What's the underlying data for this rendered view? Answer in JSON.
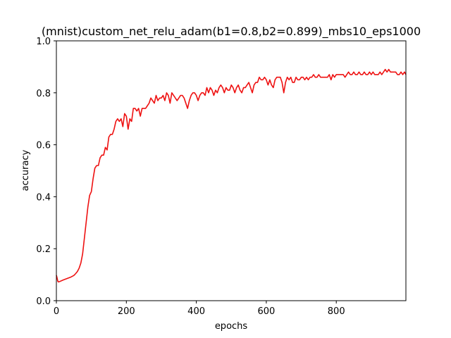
{
  "chart_data": {
    "type": "line",
    "title": "(mnist)custom_net_relu_adam(b1=0.8,b2=0.899)_mbs10_eps1000",
    "xlabel": "epochs",
    "ylabel": "accuracy",
    "xlim": [
      0,
      999
    ],
    "ylim": [
      0.0,
      1.0
    ],
    "x_ticks": [
      0,
      200,
      400,
      600,
      800
    ],
    "x_tick_labels": [
      "0",
      "200",
      "400",
      "600",
      "800"
    ],
    "y_ticks": [
      0.0,
      0.2,
      0.4,
      0.6,
      0.8,
      1.0
    ],
    "y_tick_labels": [
      "0.0",
      "0.2",
      "0.4",
      "0.6",
      "0.8",
      "1.0"
    ],
    "grid": false,
    "colors": {
      "line": "#ee1111",
      "axes": "#000000",
      "background": "#ffffff"
    },
    "series": [
      {
        "x": [
          0,
          2,
          4,
          6,
          10,
          20,
          30,
          40,
          50,
          55,
          60,
          65,
          70,
          75,
          80,
          85,
          90,
          95,
          100,
          105,
          110,
          115,
          120,
          125,
          130,
          135,
          140,
          145,
          150,
          155,
          160,
          165,
          170,
          175,
          180,
          185,
          190,
          195,
          200,
          205,
          210,
          215,
          220,
          225,
          230,
          235,
          240,
          245,
          250,
          255,
          260,
          265,
          270,
          275,
          280,
          285,
          290,
          295,
          300,
          305,
          310,
          315,
          320,
          325,
          330,
          335,
          340,
          345,
          350,
          355,
          360,
          365,
          370,
          375,
          380,
          385,
          390,
          395,
          400,
          405,
          410,
          415,
          420,
          425,
          430,
          435,
          440,
          445,
          450,
          455,
          460,
          465,
          470,
          475,
          480,
          485,
          490,
          495,
          500,
          505,
          510,
          515,
          520,
          525,
          530,
          535,
          540,
          545,
          550,
          555,
          560,
          565,
          570,
          575,
          580,
          585,
          590,
          595,
          600,
          605,
          610,
          615,
          620,
          625,
          630,
          635,
          640,
          645,
          650,
          655,
          660,
          665,
          670,
          675,
          680,
          685,
          690,
          695,
          700,
          705,
          710,
          715,
          720,
          725,
          730,
          735,
          740,
          745,
          750,
          755,
          760,
          765,
          770,
          775,
          780,
          785,
          790,
          795,
          800,
          805,
          810,
          815,
          820,
          825,
          830,
          835,
          840,
          845,
          850,
          855,
          860,
          865,
          870,
          875,
          880,
          885,
          890,
          895,
          900,
          905,
          910,
          915,
          920,
          925,
          930,
          935,
          940,
          945,
          950,
          955,
          960,
          965,
          970,
          975,
          980,
          985,
          990,
          995,
          999
        ],
        "y": [
          0.098,
          0.088,
          0.075,
          0.072,
          0.074,
          0.08,
          0.085,
          0.09,
          0.097,
          0.104,
          0.112,
          0.125,
          0.145,
          0.18,
          0.24,
          0.3,
          0.36,
          0.405,
          0.42,
          0.47,
          0.51,
          0.52,
          0.52,
          0.55,
          0.56,
          0.56,
          0.59,
          0.58,
          0.63,
          0.64,
          0.64,
          0.66,
          0.69,
          0.7,
          0.69,
          0.7,
          0.67,
          0.72,
          0.71,
          0.66,
          0.7,
          0.69,
          0.74,
          0.74,
          0.73,
          0.74,
          0.71,
          0.74,
          0.74,
          0.74,
          0.75,
          0.76,
          0.78,
          0.77,
          0.76,
          0.79,
          0.77,
          0.78,
          0.78,
          0.79,
          0.77,
          0.8,
          0.79,
          0.76,
          0.8,
          0.79,
          0.78,
          0.77,
          0.78,
          0.79,
          0.79,
          0.78,
          0.76,
          0.74,
          0.77,
          0.79,
          0.8,
          0.8,
          0.79,
          0.77,
          0.79,
          0.8,
          0.8,
          0.79,
          0.82,
          0.8,
          0.82,
          0.81,
          0.79,
          0.81,
          0.8,
          0.82,
          0.83,
          0.82,
          0.8,
          0.82,
          0.81,
          0.81,
          0.83,
          0.82,
          0.8,
          0.82,
          0.83,
          0.81,
          0.8,
          0.82,
          0.82,
          0.83,
          0.84,
          0.82,
          0.8,
          0.83,
          0.84,
          0.84,
          0.86,
          0.85,
          0.85,
          0.86,
          0.85,
          0.83,
          0.85,
          0.83,
          0.82,
          0.85,
          0.86,
          0.86,
          0.86,
          0.84,
          0.8,
          0.84,
          0.86,
          0.85,
          0.86,
          0.84,
          0.84,
          0.86,
          0.85,
          0.85,
          0.86,
          0.86,
          0.85,
          0.86,
          0.85,
          0.86,
          0.86,
          0.87,
          0.86,
          0.86,
          0.87,
          0.86,
          0.86,
          0.86,
          0.86,
          0.86,
          0.87,
          0.85,
          0.87,
          0.86,
          0.87,
          0.87,
          0.87,
          0.87,
          0.87,
          0.86,
          0.87,
          0.88,
          0.87,
          0.87,
          0.88,
          0.87,
          0.87,
          0.88,
          0.87,
          0.87,
          0.88,
          0.87,
          0.87,
          0.88,
          0.87,
          0.88,
          0.87,
          0.87,
          0.87,
          0.88,
          0.87,
          0.88,
          0.89,
          0.88,
          0.89,
          0.88,
          0.88,
          0.88,
          0.88,
          0.87,
          0.87,
          0.88,
          0.87,
          0.88,
          0.87
        ]
      }
    ]
  }
}
